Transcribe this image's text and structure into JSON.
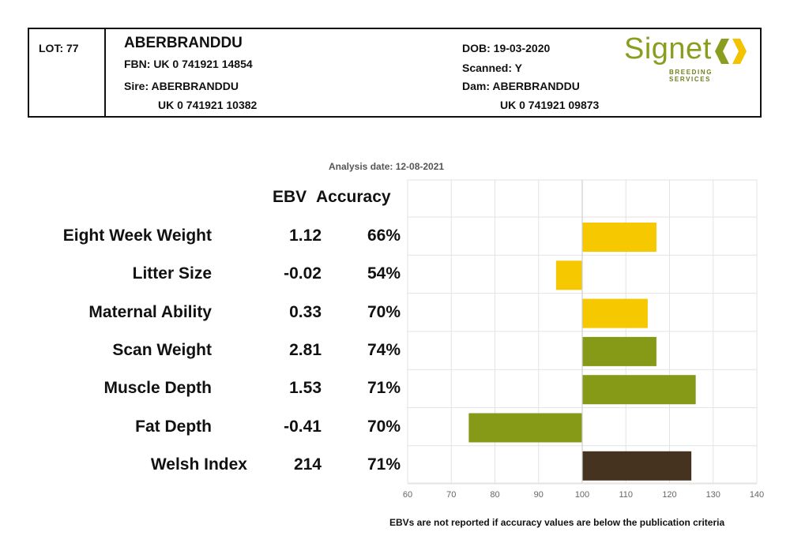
{
  "header": {
    "lot": "LOT: 77",
    "name": "ABERBRANDDU",
    "fbn": "FBN: UK 0 741921 14854",
    "sire_label": "Sire: ABERBRANDDU",
    "sire_id": "UK 0 741921 10382",
    "dob": "DOB: 19-03-2020",
    "scanned": "Scanned: Y",
    "dam_label": "Dam: ABERBRANDDU",
    "dam_id": "UK 0 741921 09873"
  },
  "logo": {
    "word": "Signet",
    "sub": "BREEDING SERVICES",
    "colors": {
      "green": "#8a9d1f",
      "yellow": "#f3c300"
    }
  },
  "analysis_date": "Analysis date: 12-08-2021",
  "columns": {
    "ebv": "EBV",
    "accuracy": "Accuracy"
  },
  "footnote": "EBVs are not reported if accuracy values are below the publication criteria",
  "colors": {
    "yellow": "#f5c800",
    "green": "#879a18",
    "brown": "#45321f",
    "grid": "#e3e3e3"
  },
  "chart_data": {
    "type": "bar",
    "orientation": "horizontal",
    "categories": [
      "Eight Week Weight",
      "Litter Size",
      "Maternal Ability",
      "Scan Weight",
      "Muscle Depth",
      "Fat Depth",
      "Welsh Index"
    ],
    "ebv": [
      "1.12",
      "-0.02",
      "0.33",
      "2.81",
      "1.53",
      "-0.41",
      "214"
    ],
    "accuracy": [
      "66%",
      "54%",
      "70%",
      "74%",
      "71%",
      "70%",
      "71%"
    ],
    "values": [
      117,
      94,
      115,
      117,
      126,
      74,
      125
    ],
    "baseline": 100,
    "bar_colors": [
      "yellow",
      "yellow",
      "yellow",
      "green",
      "green",
      "green",
      "brown"
    ],
    "xlim": [
      60,
      140
    ],
    "xticks": [
      "60",
      "70",
      "80",
      "90",
      "100",
      "110",
      "120",
      "130",
      "140"
    ],
    "grid": true
  }
}
